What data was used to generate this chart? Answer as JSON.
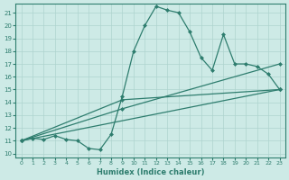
{
  "xlabel": "Humidex (Indice chaleur)",
  "ylabel": "",
  "xlim": [
    -0.5,
    23.5
  ],
  "ylim": [
    9.7,
    21.7
  ],
  "yticks": [
    10,
    11,
    12,
    13,
    14,
    15,
    16,
    17,
    18,
    19,
    20,
    21
  ],
  "xticks": [
    0,
    1,
    2,
    3,
    4,
    5,
    6,
    7,
    8,
    9,
    10,
    11,
    12,
    13,
    14,
    15,
    16,
    17,
    18,
    19,
    20,
    21,
    22,
    23
  ],
  "line_color": "#2e7d6e",
  "bg_color": "#cdeae6",
  "grid_color": "#aed4cf",
  "lines": [
    {
      "x": [
        0,
        1,
        2,
        3,
        4,
        5,
        6,
        7,
        8,
        9,
        10,
        11,
        12,
        13,
        14,
        15,
        16,
        17,
        18,
        19,
        20,
        21,
        22,
        23
      ],
      "y": [
        11,
        11.2,
        11.1,
        11.4,
        11.1,
        11.0,
        10.4,
        10.3,
        11.5,
        14.5,
        18.0,
        20.0,
        21.5,
        21.2,
        21.0,
        19.5,
        17.5,
        16.5,
        19.3,
        17.0,
        17.0,
        16.8,
        16.2,
        15.0
      ],
      "marker": true
    },
    {
      "x": [
        0,
        23
      ],
      "y": [
        11,
        15.0
      ],
      "marker": false
    },
    {
      "x": [
        0,
        9,
        23
      ],
      "y": [
        11,
        13.5,
        17.0
      ],
      "marker": false
    },
    {
      "x": [
        0,
        9,
        23
      ],
      "y": [
        11,
        14.2,
        15.0
      ],
      "marker": false
    }
  ]
}
